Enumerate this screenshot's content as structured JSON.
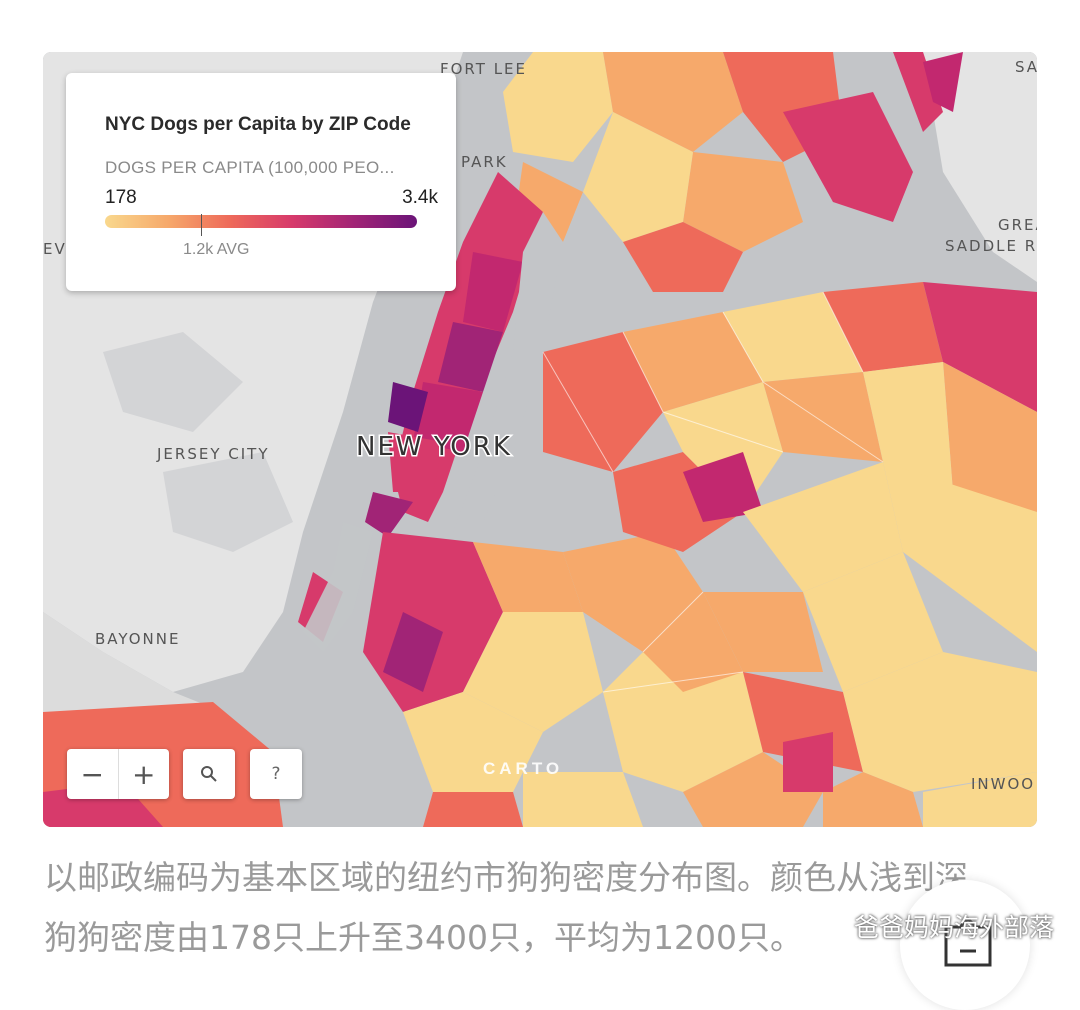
{
  "map": {
    "title": "NYC Dogs per Capita by ZIP Code",
    "legend": {
      "subtitle": "DOGS PER CAPITA (100,000 PEO...",
      "min_label": "178",
      "max_label": "3.4k",
      "avg_label": "1.2k AVG",
      "min_value": 178,
      "max_value": 3400,
      "avg_value": 1200,
      "colors": [
        "#f9d88d",
        "#f6a96b",
        "#ee6a5a",
        "#d73a6b",
        "#a12476",
        "#6b1478"
      ]
    },
    "labels": {
      "city": "NEW YORK",
      "jersey_city": "JERSEY CITY",
      "bayonne": "BAYONNE",
      "fort_lee": "FORT LEE",
      "park": "PARK",
      "saddle_rock": "SADDLE ROCK",
      "great": "GREA",
      "inwood": "INWOO",
      "sa": "SA",
      "ev": "EV"
    },
    "controls": {
      "zoom_out": "−",
      "zoom_in": "+",
      "search_icon": "search-icon",
      "help": "?"
    },
    "attribution": "CARTO"
  },
  "caption": {
    "text": "以邮政编码为基本区域的纽约市狗狗密度分布图。颜色从浅到深，狗狗密度由178只上升至3400只，平均为1200只。"
  },
  "watermark": {
    "text": "爸爸妈妈海外部落"
  }
}
